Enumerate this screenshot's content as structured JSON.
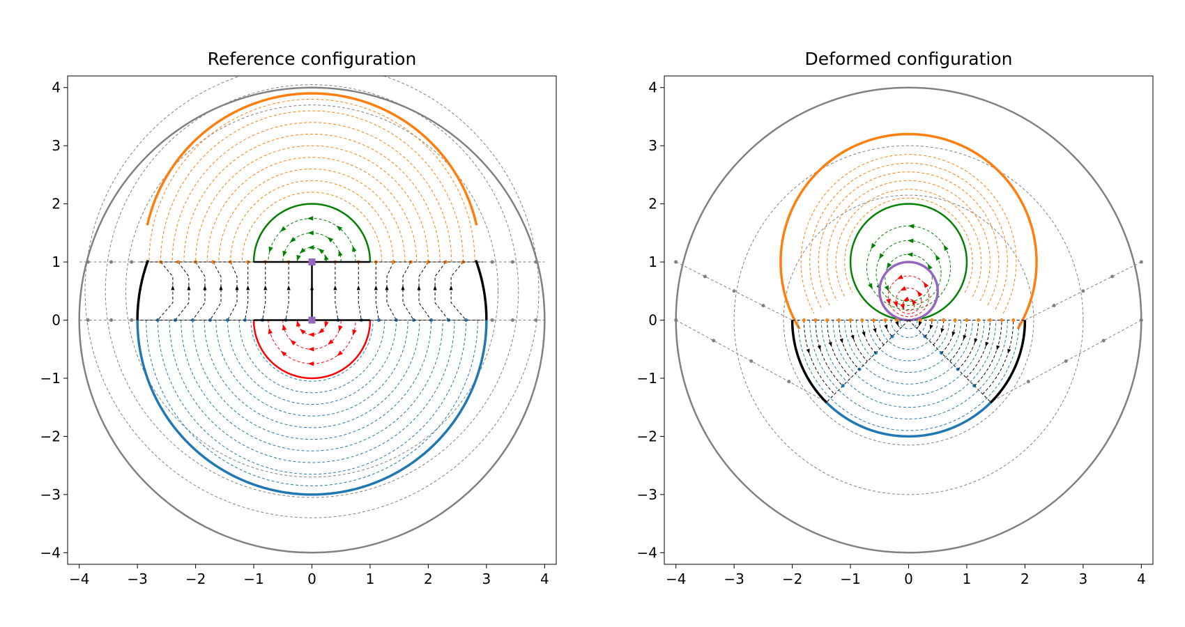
{
  "chart_data": [
    {
      "type": "line",
      "title": "Reference configuration",
      "xlabel": "",
      "ylabel": "",
      "xlim": [
        -4.2,
        4.2
      ],
      "ylim": [
        -4.2,
        4.2
      ],
      "xticks": [
        -4,
        -3,
        -2,
        -1,
        0,
        1,
        2,
        3,
        4
      ],
      "yticks": [
        -4,
        -3,
        -2,
        -1,
        0,
        1,
        2,
        3,
        4
      ],
      "xtick_labels": [
        "−4",
        "−3",
        "−2",
        "−1",
        "0",
        "1",
        "2",
        "3",
        "4"
      ],
      "ytick_labels": [
        "−4",
        "−3",
        "−2",
        "−1",
        "0",
        "1",
        "2",
        "3",
        "4"
      ],
      "grid": false,
      "outer_circle": {
        "cx": 0,
        "cy": 0,
        "r": 4
      },
      "grey_rings": [
        3.7,
        3.35,
        3.0
      ],
      "upper_half_disk": {
        "center": [
          0,
          1
        ],
        "outer_r": 3.0,
        "inner_r": 2.0
      },
      "lower_half_disk": {
        "center": [
          0,
          0
        ],
        "outer_r": 3.0,
        "inner_r": 1.0
      },
      "orange_arc_r": [
        2.8,
        2.6,
        2.4,
        2.2,
        2.0,
        1.8,
        1.6,
        1.4,
        1.2
      ],
      "green_arc_r": [
        1.0,
        0.75,
        0.5,
        0.25
      ],
      "red_arc_r": [
        1.0,
        0.75,
        0.5,
        0.25
      ],
      "blue_arc_r": [
        2.85,
        2.65,
        2.45,
        2.25,
        2.05,
        1.85,
        1.65,
        1.45,
        1.25,
        1.05
      ],
      "strip_x_top": [
        -2.6,
        -2.3,
        -2.0,
        -1.7,
        -1.4,
        -1.1,
        -0.8,
        -0.4,
        0.0,
        0.4,
        0.8,
        1.1,
        1.4,
        1.7,
        2.0,
        2.3,
        2.6
      ],
      "strip_x_bottom": [
        -2.65,
        -2.35,
        -2.05,
        -1.75,
        -1.45,
        -1.15,
        -0.85,
        -0.45,
        0.0,
        0.45,
        0.85,
        1.15,
        1.45,
        1.75,
        2.05,
        2.35,
        2.65
      ],
      "grey_dot_x": [
        -3.85,
        -3.45,
        -3.1,
        3.1,
        3.45,
        3.85
      ],
      "colors": {
        "outer": "#808080",
        "orange": "#ff7f0e",
        "blue": "#1f77b4",
        "green": "#008000",
        "red": "#ff0000",
        "purple": "#9467bd",
        "black": "#000000"
      }
    },
    {
      "type": "line",
      "title": "Deformed configuration",
      "xlabel": "",
      "ylabel": "",
      "xlim": [
        -4.2,
        4.2
      ],
      "ylim": [
        -4.2,
        4.2
      ],
      "xticks": [
        -4,
        -3,
        -2,
        -1,
        0,
        1,
        2,
        3,
        4
      ],
      "yticks": [
        -4,
        -3,
        -2,
        -1,
        0,
        1,
        2,
        3,
        4
      ],
      "xtick_labels": [
        "−4",
        "−3",
        "−2",
        "−1",
        "0",
        "1",
        "2",
        "3",
        "4"
      ],
      "ytick_labels": [
        "−4",
        "−3",
        "−2",
        "−1",
        "0",
        "1",
        "2",
        "3",
        "4"
      ],
      "grid": false,
      "outer_circle": {
        "cx": 0,
        "cy": 0,
        "r": 4
      },
      "grey_rings": [
        3.0,
        2.15
      ],
      "orange_outer": {
        "center": [
          0,
          1
        ],
        "r": 2.0,
        "base_y": 0
      },
      "orange_inner_r": [
        1.85,
        1.7,
        1.55,
        1.4,
        1.25,
        1.1
      ],
      "green_circle": {
        "center": [
          0,
          1
        ],
        "r": 1.0
      },
      "green_inner_r": [
        0.8,
        0.62,
        0.45
      ],
      "purple_circle": {
        "center": [
          0,
          0.5
        ],
        "r": 0.5
      },
      "red_inner_r": [
        0.35,
        0.22,
        0.1
      ],
      "lower_disk": {
        "center": [
          0,
          0
        ],
        "outer_r": 2.0,
        "inner_r": 0
      },
      "blue_arc_r": [
        1.9,
        1.7,
        1.5,
        1.3,
        1.1,
        0.9,
        0.7,
        0.5,
        0.3,
        0.15
      ],
      "fan_x_top": [
        -1.8,
        -1.6,
        -1.4,
        -1.2,
        -1.0,
        -0.8,
        -0.6,
        -0.4,
        -0.2,
        0.2,
        0.4,
        0.6,
        0.8,
        1.0,
        1.2,
        1.4,
        1.6,
        1.8
      ],
      "grey_line_endpoints": [
        [
          [
            -4,
            1
          ],
          [
            -2,
            0
          ]
        ],
        [
          [
            -4,
            0
          ],
          [
            -1.41,
            -1.41
          ]
        ],
        [
          [
            4,
            1
          ],
          [
            2,
            0
          ]
        ],
        [
          [
            4,
            0
          ],
          [
            1.41,
            -1.41
          ]
        ]
      ],
      "colors": {
        "outer": "#808080",
        "orange": "#ff7f0e",
        "blue": "#1f77b4",
        "green": "#008000",
        "red": "#ff0000",
        "purple": "#9467bd",
        "black": "#000000"
      }
    }
  ]
}
